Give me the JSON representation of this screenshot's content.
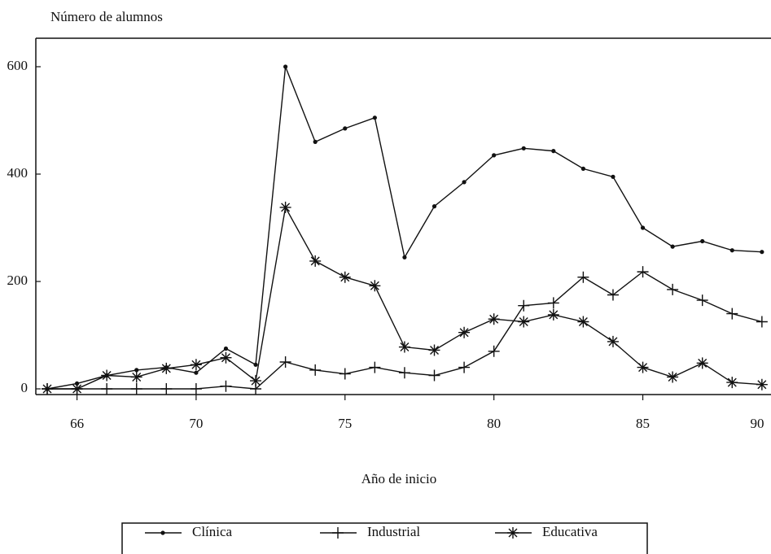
{
  "chart_data": {
    "type": "line",
    "y_label": "Número de alumnos",
    "x_label": "Año de inicio",
    "x": [
      65,
      66,
      67,
      68,
      69,
      70,
      71,
      72,
      73,
      74,
      75,
      76,
      77,
      78,
      79,
      80,
      81,
      82,
      83,
      84,
      85,
      86,
      87,
      88,
      89
    ],
    "series": [
      {
        "name": "Clínica",
        "color": "#111111",
        "marker": "dot",
        "values": [
          0,
          10,
          25,
          35,
          40,
          30,
          75,
          45,
          600,
          460,
          485,
          505,
          245,
          340,
          385,
          435,
          448,
          443,
          410,
          395,
          300,
          265,
          275,
          258,
          255
        ]
      },
      {
        "name": "Industrial",
        "color": "#111111",
        "marker": "plus",
        "values": [
          0,
          0,
          0,
          0,
          0,
          0,
          5,
          0,
          50,
          35,
          28,
          40,
          30,
          25,
          40,
          70,
          155,
          160,
          208,
          175,
          218,
          185,
          165,
          140,
          125
        ]
      },
      {
        "name": "Educativa",
        "color": "#111111",
        "marker": "asterisk",
        "values": [
          0,
          0,
          25,
          22,
          38,
          45,
          58,
          15,
          338,
          238,
          208,
          192,
          78,
          72,
          105,
          130,
          125,
          138,
          125,
          88,
          40,
          22,
          48,
          12,
          8
        ]
      }
    ],
    "xlim": [
      65,
      89.25
    ],
    "xticks": [
      66,
      70,
      75,
      80,
      85,
      90
    ],
    "ylim": [
      0,
      600
    ],
    "yticks": [
      0,
      200,
      400,
      600
    ]
  }
}
